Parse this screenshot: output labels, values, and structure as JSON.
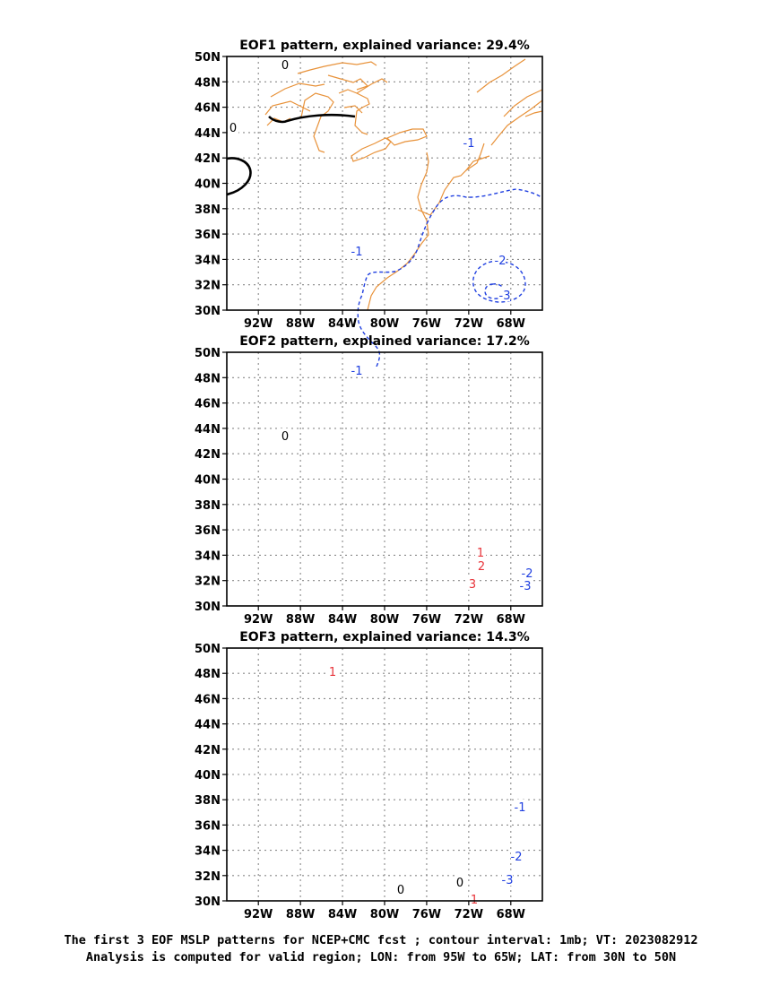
{
  "chart_data": [
    {
      "type": "contour-map",
      "title": "EOF1 pattern, explained variance: 29.4%",
      "lon_range": [
        -95,
        -65
      ],
      "lat_range": [
        30,
        50
      ],
      "x_ticks": [
        "92W",
        "88W",
        "84W",
        "80W",
        "76W",
        "72W",
        "68W"
      ],
      "y_ticks": [
        "30N",
        "32N",
        "34N",
        "36N",
        "38N",
        "40N",
        "42N",
        "44N",
        "46N",
        "48N",
        "50N"
      ],
      "grid": true,
      "contour_labels": [
        "0",
        "0",
        "-1",
        "-1",
        "-2",
        "-3"
      ]
    },
    {
      "type": "contour-map",
      "title": "EOF2 pattern, explained variance: 17.2%",
      "lon_range": [
        -95,
        -65
      ],
      "lat_range": [
        30,
        50
      ],
      "x_ticks": [
        "92W",
        "88W",
        "84W",
        "80W",
        "76W",
        "72W",
        "68W"
      ],
      "y_ticks": [
        "30N",
        "32N",
        "34N",
        "36N",
        "38N",
        "40N",
        "42N",
        "44N",
        "46N",
        "48N",
        "50N"
      ],
      "grid": true,
      "contour_labels": [
        "-1",
        "0",
        "1",
        "2",
        "3",
        "-2",
        "-3"
      ]
    },
    {
      "type": "contour-map",
      "title": "EOF3 pattern, explained variance: 14.3%",
      "lon_range": [
        -95,
        -65
      ],
      "lat_range": [
        30,
        50
      ],
      "x_ticks": [
        "92W",
        "88W",
        "84W",
        "80W",
        "76W",
        "72W",
        "68W"
      ],
      "y_ticks": [
        "30N",
        "32N",
        "34N",
        "36N",
        "38N",
        "40N",
        "42N",
        "44N",
        "46N",
        "48N",
        "50N"
      ],
      "grid": true,
      "contour_labels": [
        "1",
        "0",
        "0",
        "-1",
        "-2",
        "-3",
        "1"
      ]
    }
  ],
  "colors": {
    "positive": "#e8343a",
    "negative": "#1f3fe0",
    "zero": "#000000",
    "coast": "#e8923a",
    "grid": "#888888"
  },
  "caption": {
    "line1": "The first 3 EOF MSLP patterns for NCEP+CMC fcst ; contour interval: 1mb; VT: 2023082912",
    "line2": "Analysis is computed for valid region; LON: from 95W to 65W; LAT: from 30N to 50N"
  }
}
